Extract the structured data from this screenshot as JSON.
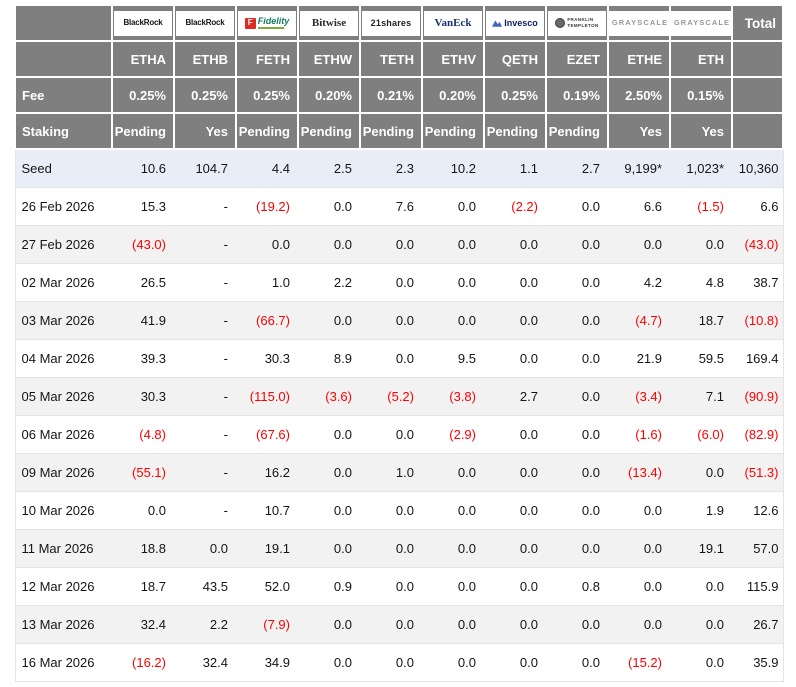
{
  "colors": {
    "header_bg": "#7f7f7f",
    "header_text": "#ffffff",
    "seed_row_bg": "#e9edf8",
    "alt_row_bg": "#f2f2f2",
    "negative_text": "#fe0000",
    "body_text": "#151515",
    "row_border": "#e4e4e4"
  },
  "chart_data": {
    "type": "table",
    "total_column_label": "Total",
    "row_header_labels": {
      "fee": "Fee",
      "staking": "Staking"
    },
    "columns": [
      {
        "provider": "BlackRock",
        "provider_id": "blackrock",
        "logo_text": "BlackRock",
        "ticker": "ETHA",
        "fee": "0.25%",
        "staking": "Pending"
      },
      {
        "provider": "BlackRock",
        "provider_id": "blackrock",
        "logo_text": "BlackRock",
        "ticker": "ETHB",
        "fee": "0.25%",
        "staking": "Yes"
      },
      {
        "provider": "Fidelity",
        "provider_id": "fidelity",
        "logo_text": "Fidelity",
        "ticker": "FETH",
        "fee": "0.25%",
        "staking": "Pending"
      },
      {
        "provider": "Bitwise",
        "provider_id": "bitwise",
        "logo_text": "Bitwise",
        "ticker": "ETHW",
        "fee": "0.20%",
        "staking": "Pending"
      },
      {
        "provider": "21shares",
        "provider_id": "21shares",
        "logo_text": "21shares",
        "ticker": "TETH",
        "fee": "0.21%",
        "staking": "Pending"
      },
      {
        "provider": "VanEck",
        "provider_id": "vaneck",
        "logo_text": "VanEck",
        "ticker": "ETHV",
        "fee": "0.20%",
        "staking": "Pending"
      },
      {
        "provider": "Invesco",
        "provider_id": "invesco",
        "logo_text": "Invesco",
        "ticker": "QETH",
        "fee": "0.25%",
        "staking": "Pending"
      },
      {
        "provider": "Franklin Templeton",
        "provider_id": "franklin",
        "logo_text": "FRANKLIN TEMPLETON",
        "ticker": "EZET",
        "fee": "0.19%",
        "staking": "Pending"
      },
      {
        "provider": "Grayscale",
        "provider_id": "grayscale",
        "logo_text": "GRAYSCALE",
        "ticker": "ETHE",
        "fee": "2.50%",
        "staking": "Yes"
      },
      {
        "provider": "Grayscale",
        "provider_id": "grayscale",
        "logo_text": "GRAYSCALE",
        "ticker": "ETH",
        "fee": "0.15%",
        "staking": "Yes"
      }
    ],
    "rows": [
      {
        "label": "Seed",
        "values": [
          "10.6",
          "104.7",
          "4.4",
          "2.5",
          "2.3",
          "10.2",
          "1.1",
          "2.7",
          "9,199*",
          "1,023*"
        ],
        "total": "10,360"
      },
      {
        "label": "26 Feb 2026",
        "values": [
          "15.3",
          "-",
          "(19.2)",
          "0.0",
          "7.6",
          "0.0",
          "(2.2)",
          "0.0",
          "6.6",
          "(1.5)"
        ],
        "total": "6.6"
      },
      {
        "label": "27 Feb 2026",
        "values": [
          "(43.0)",
          "-",
          "0.0",
          "0.0",
          "0.0",
          "0.0",
          "0.0",
          "0.0",
          "0.0",
          "0.0"
        ],
        "total": "(43.0)"
      },
      {
        "label": "02 Mar 2026",
        "values": [
          "26.5",
          "-",
          "1.0",
          "2.2",
          "0.0",
          "0.0",
          "0.0",
          "0.0",
          "4.2",
          "4.8"
        ],
        "total": "38.7"
      },
      {
        "label": "03 Mar 2026",
        "values": [
          "41.9",
          "-",
          "(66.7)",
          "0.0",
          "0.0",
          "0.0",
          "0.0",
          "0.0",
          "(4.7)",
          "18.7"
        ],
        "total": "(10.8)"
      },
      {
        "label": "04 Mar 2026",
        "values": [
          "39.3",
          "-",
          "30.3",
          "8.9",
          "0.0",
          "9.5",
          "0.0",
          "0.0",
          "21.9",
          "59.5"
        ],
        "total": "169.4"
      },
      {
        "label": "05 Mar 2026",
        "values": [
          "30.3",
          "-",
          "(115.0)",
          "(3.6)",
          "(5.2)",
          "(3.8)",
          "2.7",
          "0.0",
          "(3.4)",
          "7.1"
        ],
        "total": "(90.9)"
      },
      {
        "label": "06 Mar 2026",
        "values": [
          "(4.8)",
          "-",
          "(67.6)",
          "0.0",
          "0.0",
          "(2.9)",
          "0.0",
          "0.0",
          "(1.6)",
          "(6.0)"
        ],
        "total": "(82.9)"
      },
      {
        "label": "09 Mar 2026",
        "values": [
          "(55.1)",
          "-",
          "16.2",
          "0.0",
          "1.0",
          "0.0",
          "0.0",
          "0.0",
          "(13.4)",
          "0.0"
        ],
        "total": "(51.3)"
      },
      {
        "label": "10 Mar 2026",
        "values": [
          "0.0",
          "-",
          "10.7",
          "0.0",
          "0.0",
          "0.0",
          "0.0",
          "0.0",
          "0.0",
          "1.9"
        ],
        "total": "12.6"
      },
      {
        "label": "11 Mar 2026",
        "values": [
          "18.8",
          "0.0",
          "19.1",
          "0.0",
          "0.0",
          "0.0",
          "0.0",
          "0.0",
          "0.0",
          "19.1"
        ],
        "total": "57.0"
      },
      {
        "label": "12 Mar 2026",
        "values": [
          "18.7",
          "43.5",
          "52.0",
          "0.9",
          "0.0",
          "0.0",
          "0.0",
          "0.8",
          "0.0",
          "0.0"
        ],
        "total": "115.9"
      },
      {
        "label": "13 Mar 2026",
        "values": [
          "32.4",
          "2.2",
          "(7.9)",
          "0.0",
          "0.0",
          "0.0",
          "0.0",
          "0.0",
          "0.0",
          "0.0"
        ],
        "total": "26.7"
      },
      {
        "label": "16 Mar 2026",
        "values": [
          "(16.2)",
          "32.4",
          "34.9",
          "0.0",
          "0.0",
          "0.0",
          "0.0",
          "0.0",
          "(15.2)",
          "0.0"
        ],
        "total": "35.9"
      }
    ]
  }
}
